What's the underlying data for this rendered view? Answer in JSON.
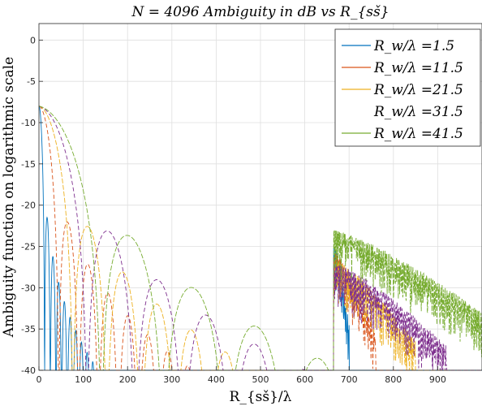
{
  "chart_data": {
    "type": "line",
    "title": "N = 4096 Ambiguity in dB vs R_{sš}",
    "xlabel": "R_{sš}/λ",
    "ylabel": "Ambiguity function on logarithmic scale",
    "xlim": [
      0,
      1000
    ],
    "ylim": [
      -40,
      2
    ],
    "xticks": [
      0,
      100,
      200,
      300,
      400,
      500,
      600,
      700,
      800,
      900
    ],
    "yticks": [
      0,
      -5,
      -10,
      -15,
      -20,
      -25,
      -30,
      -35,
      -40
    ],
    "grid": true,
    "legend_position": "top-right",
    "series": [
      {
        "name": "R_w/λ =1.5",
        "color": "#0072bd",
        "width_param": 1.5,
        "sidelobe_lambda": [
          665,
          700
        ],
        "sidelobe_peak_db": -24.5
      },
      {
        "name": "R_w/λ =11.5",
        "color": "#d95319",
        "width_param": 11.5,
        "sidelobe_lambda": [
          665,
          760
        ],
        "sidelobe_peak_db": -25.5
      },
      {
        "name": "R_w/λ =21.5",
        "color": "#edb120",
        "width_param": 21.5,
        "sidelobe_lambda": [
          665,
          850
        ],
        "sidelobe_peak_db": -26.5
      },
      {
        "name": "R_w/λ =31.5",
        "color": "#7e2f8e",
        "width_param": 31.5,
        "sidelobe_lambda": [
          665,
          920
        ],
        "sidelobe_peak_db": -27.0
      },
      {
        "name": "R_w/λ =41.5",
        "color": "#77ac30",
        "width_param": 41.5,
        "sidelobe_lambda": [
          665,
          1000
        ],
        "sidelobe_peak_db": -23.0
      }
    ]
  }
}
